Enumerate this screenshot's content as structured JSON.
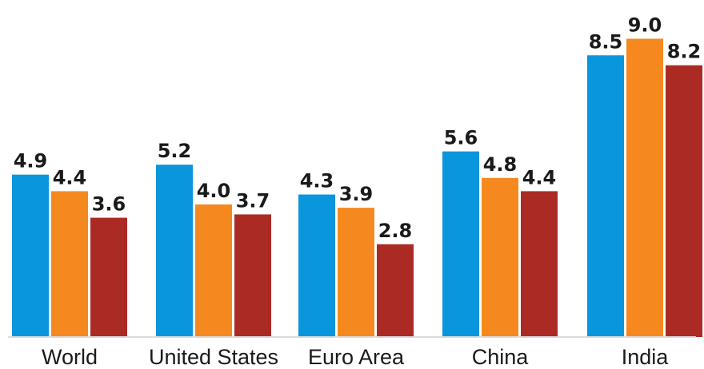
{
  "chart_data": {
    "type": "bar",
    "categories": [
      "World",
      "United States",
      "Euro Area",
      "China",
      "India"
    ],
    "series": [
      {
        "color": "#0a96dc",
        "values": [
          4.9,
          5.2,
          4.3,
          5.6,
          8.5
        ],
        "labels": [
          "4.9",
          "5.2",
          "4.3",
          "5.6",
          "8.5"
        ]
      },
      {
        "color": "#f5891f",
        "values": [
          4.4,
          4.0,
          3.9,
          4.8,
          9.0
        ],
        "labels": [
          "4.4",
          "4.0",
          "3.9",
          "4.8",
          "9.0"
        ]
      },
      {
        "color": "#ac2a24",
        "values": [
          3.6,
          3.7,
          2.8,
          4.4,
          8.2
        ],
        "labels": [
          "3.6",
          "3.7",
          "2.8",
          "4.4",
          "8.2"
        ]
      }
    ],
    "ylim": [
      0,
      9
    ],
    "grid": false,
    "title": "",
    "xlabel": "",
    "ylabel": ""
  }
}
